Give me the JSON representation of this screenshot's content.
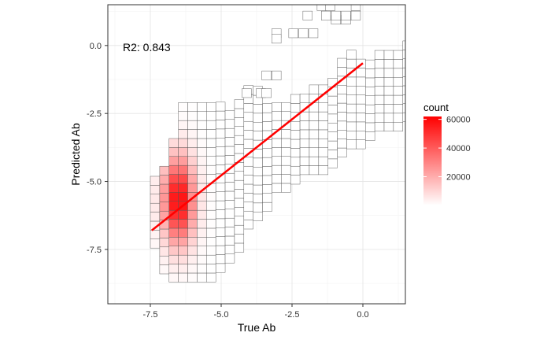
{
  "chart_data": {
    "type": "heatmap",
    "xlabel": "True Ab",
    "ylabel": "Predicted Ab",
    "xlim": [
      -9.0,
      1.5
    ],
    "ylim": [
      -9.5,
      1.5
    ],
    "x_ticks": [
      -7.5,
      -5.0,
      -2.5,
      0.0
    ],
    "x_tick_labels": [
      "-7.5",
      "-5.0",
      "-2.5",
      "0.0"
    ],
    "y_ticks": [
      -7.5,
      -5.0,
      -2.5,
      0.0
    ],
    "y_tick_labels": [
      "-7.5",
      "-5.0",
      "-2.5",
      "0.0"
    ],
    "grid": true,
    "bin_width": 0.33,
    "x_bin_origin": -7.5,
    "y_bin_origin": -9.0,
    "annotation": "R2: 0.843",
    "legend": {
      "title": "count",
      "placement": "right",
      "ticks": [
        20000,
        40000,
        60000
      ],
      "tick_labels": [
        "20000",
        "40000",
        "60000"
      ],
      "range": [
        0,
        62000
      ]
    },
    "colors": {
      "low": "#ffffff",
      "high": "#ff0000",
      "cell_border": "#555555",
      "fit_line": "#ff0000"
    },
    "fit_line": {
      "x": [
        -7.45,
        0.0
      ],
      "y": [
        -6.8,
        -0.65
      ]
    },
    "col_ranges": [
      [
        -7.45,
        -5.05
      ],
      [
        -8.4,
        -4.55
      ],
      [
        -8.7,
        -3.7
      ],
      [
        -8.7,
        -2.4
      ],
      [
        -8.7,
        -2.4
      ],
      [
        -8.7,
        -2.4
      ],
      [
        -8.7,
        -2.4
      ],
      [
        -8.35,
        -2.4
      ],
      [
        -8.0,
        -2.4
      ],
      [
        -7.6,
        -2.1
      ],
      [
        -6.75,
        -1.75
      ],
      [
        -6.45,
        -1.75
      ],
      [
        -6.1,
        -2.4
      ],
      [
        -5.4,
        -2.4
      ],
      [
        -5.4,
        -2.4
      ],
      [
        -5.1,
        -2.1
      ],
      [
        -4.75,
        -2.1
      ],
      [
        -4.75,
        -1.75
      ],
      [
        -4.75,
        -1.45
      ],
      [
        -4.5,
        -1.45
      ],
      [
        -4.1,
        -0.75
      ],
      [
        -3.8,
        -0.45
      ],
      [
        -3.8,
        -0.75
      ],
      [
        -3.5,
        -0.75
      ],
      [
        -3.15,
        -0.45
      ],
      [
        -3.15,
        -0.45
      ],
      [
        -3.15,
        -0.45
      ],
      [
        -2.8,
        -0.1
      ],
      [
        -2.8,
        0.25
      ],
      [
        -2.8,
        0.25
      ],
      [
        -2.8,
        0.25
      ],
      [
        -2.8,
        0.25
      ],
      [
        -2.5,
        0.25
      ],
      [
        -2.15,
        0.25
      ],
      [
        -2.15,
        0.25
      ],
      [
        -1.75,
        0.25
      ],
      [
        -1.45,
        0.25
      ],
      [
        -1.45,
        0.6
      ],
      [
        -1.45,
        0.6
      ],
      [
        -1.05,
        0.6
      ],
      [
        -0.45,
        0.6
      ],
      [
        -0.45,
        0.6
      ],
      [
        -0.45,
        0.6
      ],
      [
        -0.45,
        0.25
      ]
    ],
    "extra_cells": [
      [
        -4.1,
        -1.75
      ],
      [
        -3.6,
        -1.75
      ],
      [
        -3.4,
        -1.75
      ],
      [
        -3.05,
        0.45
      ],
      [
        -3.05,
        0.25
      ],
      [
        -2.45,
        0.45
      ],
      [
        -2.1,
        0.45
      ],
      [
        -1.75,
        0.45
      ],
      [
        -0.95,
        0.95
      ],
      [
        -0.6,
        0.95
      ],
      [
        -1.45,
        1.45
      ],
      [
        -1.15,
        1.45
      ],
      [
        -0.25,
        1.45
      ],
      [
        -0.25,
        1.1
      ],
      [
        -0.6,
        1.1
      ],
      [
        -0.95,
        1.1
      ],
      [
        -1.3,
        1.1
      ],
      [
        -3.05,
        -1.1
      ],
      [
        -3.4,
        -1.1
      ],
      [
        -1.95,
        1.1
      ]
    ],
    "count_distribution": {
      "x_center": -6.5,
      "y_center": -5.7,
      "x_spread": 0.38,
      "y_spread": 1.1,
      "peak": 62000
    }
  }
}
